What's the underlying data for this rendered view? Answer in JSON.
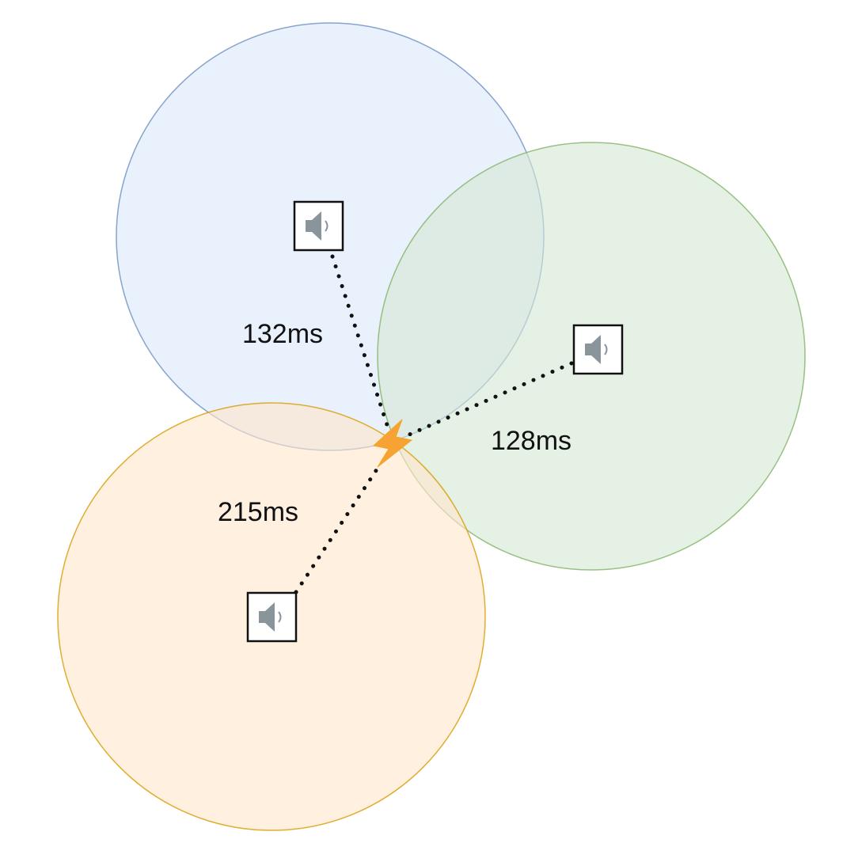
{
  "colors": {
    "blue_fill": "#dae8fc",
    "blue_stroke": "#6c8ebf",
    "green_fill": "#d5e8d4",
    "green_stroke": "#82b366",
    "orange_fill": "#ffe6cc",
    "orange_stroke": "#d79b00",
    "bolt": "#f7a234",
    "dotted_line": "#111111",
    "speaker_icon": "#8a949b"
  },
  "event": {
    "icon": "lightning-bolt-icon"
  },
  "sensors": [
    {
      "id": "blue",
      "icon": "speaker-icon",
      "delay_label": "132ms"
    },
    {
      "id": "green",
      "icon": "speaker-icon",
      "delay_label": "128ms"
    },
    {
      "id": "orange",
      "icon": "speaker-icon",
      "delay_label": "215ms"
    }
  ]
}
